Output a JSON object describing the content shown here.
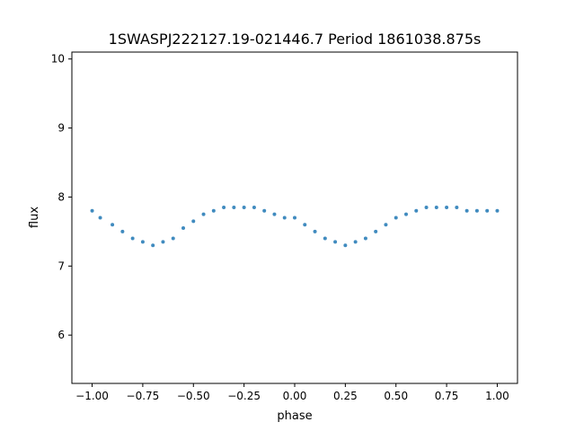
{
  "chart_data": {
    "type": "scatter",
    "title": "1SWASPJ222127.19-021446.7 Period 1861038.875s",
    "xlabel": "phase",
    "ylabel": "flux",
    "xlim": [
      -1.1,
      1.1
    ],
    "ylim": [
      5.3,
      10.1
    ],
    "xticks": [
      -1.0,
      -0.75,
      -0.5,
      -0.25,
      0.0,
      0.25,
      0.5,
      0.75,
      1.0
    ],
    "xtick_labels": [
      "−1.00",
      "−0.75",
      "−0.50",
      "−0.25",
      "0.00",
      "0.25",
      "0.50",
      "0.75",
      "1.00"
    ],
    "yticks": [
      6,
      7,
      8,
      9,
      10
    ],
    "ytick_labels": [
      "6",
      "7",
      "8",
      "9",
      "10"
    ],
    "grid": false,
    "point_color": "#1f77b4",
    "series": [
      {
        "x": [
          -1.0,
          -0.96,
          -0.9,
          -0.85,
          -0.8,
          -0.75,
          -0.7,
          -0.65,
          -0.6,
          -0.55,
          -0.5,
          -0.45,
          -0.4,
          -0.35,
          -0.3,
          -0.25,
          -0.2,
          -0.15,
          -0.1,
          -0.05,
          0.0,
          0.05,
          0.1,
          0.15,
          0.2,
          0.25,
          0.3,
          0.35,
          0.4,
          0.45,
          0.5,
          0.55,
          0.6,
          0.65,
          0.7,
          0.75,
          0.8,
          0.85,
          0.9,
          0.95,
          1.0
        ],
        "y": [
          7.8,
          7.7,
          7.6,
          7.5,
          7.4,
          7.35,
          7.3,
          7.35,
          7.4,
          7.55,
          7.65,
          7.75,
          7.8,
          7.85,
          7.85,
          7.85,
          7.85,
          7.8,
          7.75,
          7.7,
          7.7,
          7.6,
          7.5,
          7.4,
          7.35,
          7.3,
          7.35,
          7.4,
          7.5,
          7.6,
          7.7,
          7.75,
          7.8,
          7.85,
          7.85,
          7.85,
          7.85,
          7.8,
          7.8,
          7.8,
          7.8
        ]
      }
    ]
  }
}
